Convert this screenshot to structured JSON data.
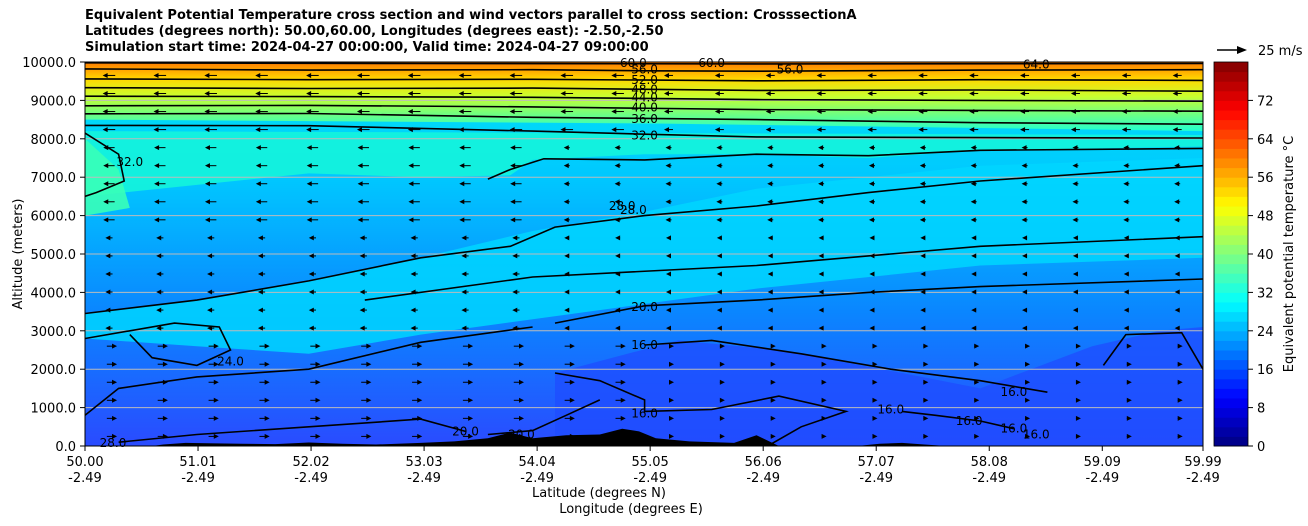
{
  "chart_data": {
    "type": "contour",
    "title_lines": [
      "Equivalent Potential Temperature cross section and wind vectors parallel to cross section: CrosssectionA",
      "Latitudes (degrees north): 50.00,60.00, Longitudes (degrees east): -2.50,-2.50",
      "Simulation start time: 2024-04-27 00:00:00, Valid time: 2024-04-27 09:00:00"
    ],
    "ylabel": "Altitude (meters)",
    "xlabel_lines": [
      "Latitude (degrees N)",
      "Longitude (degrees E)"
    ],
    "ylim": [
      0,
      10000
    ],
    "xlim": [
      50.0,
      59.99
    ],
    "y_ticks": [
      0,
      1000,
      2000,
      3000,
      4000,
      5000,
      6000,
      7000,
      8000,
      9000,
      10000
    ],
    "y_tick_labels": [
      "0.0",
      "1000.0",
      "2000.0",
      "3000.0",
      "4000.0",
      "5000.0",
      "6000.0",
      "7000.0",
      "8000.0",
      "9000.0",
      "10000.0"
    ],
    "x_ticks": [
      50.0,
      51.01,
      52.02,
      53.03,
      54.04,
      55.05,
      56.06,
      57.07,
      58.08,
      59.09,
      59.99
    ],
    "x_tick_lat_labels": [
      "50.00",
      "51.01",
      "52.02",
      "53.03",
      "54.04",
      "55.05",
      "56.06",
      "57.07",
      "58.08",
      "59.09",
      "59.99"
    ],
    "x_tick_lon_labels": [
      "-2.49",
      "-2.49",
      "-2.49",
      "-2.49",
      "-2.49",
      "-2.49",
      "-2.49",
      "-2.49",
      "-2.49",
      "-2.49",
      "-2.49"
    ],
    "grid": "horizontal",
    "colorbar": {
      "label": "Equivalent potential temperature °C",
      "range": [
        0,
        80
      ],
      "ticks": [
        0,
        8,
        16,
        24,
        32,
        40,
        48,
        56,
        64,
        72
      ],
      "tick_labels": [
        "0",
        "8",
        "16",
        "24",
        "32",
        "40",
        "48",
        "56",
        "64",
        "72"
      ],
      "colormap": "jet"
    },
    "wind_key": {
      "label": "25 m/s",
      "speed": 25
    },
    "contour_labels": [
      {
        "text": "60.0",
        "lat": 54.9,
        "alt": 9980
      },
      {
        "text": "56.0",
        "lat": 55.0,
        "alt": 9800
      },
      {
        "text": "52.0",
        "lat": 55.0,
        "alt": 9530
      },
      {
        "text": "48.0",
        "lat": 55.0,
        "alt": 9290
      },
      {
        "text": "44.0",
        "lat": 55.0,
        "alt": 9070
      },
      {
        "text": "40.0",
        "lat": 55.0,
        "alt": 8820
      },
      {
        "text": "36.0",
        "lat": 55.0,
        "alt": 8520
      },
      {
        "text": "32.0",
        "lat": 55.0,
        "alt": 8090
      },
      {
        "text": "56.0",
        "lat": 56.3,
        "alt": 9800
      },
      {
        "text": "60.0",
        "lat": 55.6,
        "alt": 9980
      },
      {
        "text": "64.0",
        "lat": 58.5,
        "alt": 9940
      },
      {
        "text": "32.0",
        "lat": 50.4,
        "alt": 7400
      },
      {
        "text": "28.0",
        "lat": 54.8,
        "alt": 6250
      },
      {
        "text": "28.0",
        "lat": 54.9,
        "alt": 6150
      },
      {
        "text": "20.0",
        "lat": 55.0,
        "alt": 3620
      },
      {
        "text": "16.0",
        "lat": 55.0,
        "alt": 2630
      },
      {
        "text": "24.0",
        "lat": 51.3,
        "alt": 2200
      },
      {
        "text": "16.0",
        "lat": 55.0,
        "alt": 850
      },
      {
        "text": "16.0",
        "lat": 57.2,
        "alt": 950
      },
      {
        "text": "16.0",
        "lat": 58.3,
        "alt": 1400
      },
      {
        "text": "16.0",
        "lat": 57.9,
        "alt": 650
      },
      {
        "text": "16.0",
        "lat": 58.3,
        "alt": 450
      },
      {
        "text": "16.0",
        "lat": 58.5,
        "alt": 300
      },
      {
        "text": "20.0",
        "lat": 53.4,
        "alt": 380
      },
      {
        "text": "20.0",
        "lat": 53.9,
        "alt": 300
      },
      {
        "text": "28.0",
        "lat": 50.25,
        "alt": 80
      }
    ]
  }
}
